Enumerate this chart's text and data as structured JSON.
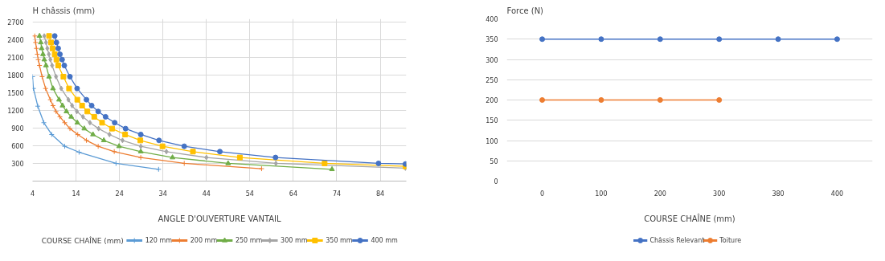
{
  "chart_data": [
    {
      "type": "line",
      "ylabel": "H châssis (mm)",
      "xlabel": "ANGLE D'OUVERTURE VANTAIL",
      "legend_title": "COURSE CHAÎNE (mm)",
      "legend": "bottom",
      "grid": true,
      "xlim": [
        4,
        90
      ],
      "xticks": [
        4,
        14,
        24,
        34,
        44,
        54,
        64,
        74,
        84
      ],
      "ylim": [
        0,
        2750
      ],
      "yticks": [
        300,
        600,
        900,
        1200,
        1500,
        1800,
        2100,
        2400,
        2700
      ],
      "series": [
        {
          "name": "120 mm",
          "color": "#5b9bd5",
          "marker": "cross",
          "x": [
            4,
            4.2,
            5.2,
            6.6,
            8.4,
            11.4,
            14.7,
            23.2,
            33
          ],
          "values": [
            1770,
            1570,
            1270,
            990,
            790,
            590,
            490,
            300,
            200
          ]
        },
        {
          "name": "200 mm",
          "color": "#ed7d31",
          "marker": "cross",
          "x": [
            4.5,
            4.7,
            4.9,
            5.1,
            5.3,
            5.6,
            6.2,
            7.0,
            8.1,
            8.7,
            9.4,
            10.3,
            11.4,
            12.6,
            14.4,
            16.4,
            19.1,
            22.8,
            28.9,
            38.9,
            56.7
          ],
          "values": [
            2460,
            2350,
            2250,
            2150,
            2060,
            1960,
            1770,
            1570,
            1380,
            1280,
            1180,
            1090,
            990,
            890,
            790,
            690,
            590,
            500,
            400,
            300,
            210
          ]
        },
        {
          "name": "250 mm",
          "color": "#70ad47",
          "marker": "triangle",
          "x": [
            5.6,
            5.9,
            6.1,
            6.4,
            6.7,
            7.1,
            7.8,
            8.7,
            10.1,
            10.9,
            11.8,
            12.9,
            14.3,
            15.9,
            17.9,
            20.4,
            23.9,
            28.9,
            36.2,
            49.0,
            72.9
          ],
          "values": [
            2460,
            2350,
            2250,
            2150,
            2060,
            1960,
            1770,
            1570,
            1380,
            1280,
            1180,
            1090,
            990,
            890,
            790,
            690,
            590,
            500,
            400,
            300,
            200
          ]
        },
        {
          "name": "300 mm",
          "color": "#a5a5a5",
          "marker": "diamond",
          "x": [
            6.7,
            7.1,
            7.4,
            7.75,
            8.1,
            8.5,
            9.4,
            10.6,
            12.25,
            13.1,
            14.2,
            15.6,
            17.2,
            19.2,
            21.7,
            24.7,
            28.9,
            34.8,
            44.0,
            60.0,
            89.8
          ],
          "values": [
            2460,
            2350,
            2250,
            2150,
            2060,
            1960,
            1770,
            1570,
            1380,
            1280,
            1180,
            1090,
            990,
            890,
            790,
            690,
            590,
            500,
            400,
            300,
            220
          ]
        },
        {
          "name": "350 mm",
          "color": "#ffc000",
          "marker": "square",
          "x": [
            7.8,
            8.25,
            8.6,
            9.1,
            9.5,
            9.9,
            11.1,
            12.4,
            14.3,
            15.4,
            16.6,
            18.2,
            20.0,
            22.3,
            25.3,
            28.8,
            33.9,
            40.9,
            51.7,
            71.2,
            89.8
          ],
          "values": [
            2460,
            2350,
            2250,
            2150,
            2060,
            1960,
            1770,
            1570,
            1380,
            1280,
            1180,
            1090,
            990,
            890,
            790,
            690,
            590,
            500,
            400,
            300,
            250
          ]
        },
        {
          "name": "400 mm",
          "color": "#4472c4",
          "marker": "circle",
          "x": [
            9.1,
            9.5,
            9.9,
            10.3,
            10.8,
            11.3,
            12.6,
            14.25,
            16.4,
            17.6,
            19.1,
            20.8,
            22.9,
            25.4,
            28.9,
            33.1,
            38.9,
            47.1,
            59.9,
            83.6,
            89.8
          ],
          "values": [
            2460,
            2350,
            2250,
            2150,
            2060,
            1960,
            1770,
            1570,
            1380,
            1280,
            1180,
            1090,
            990,
            890,
            790,
            690,
            590,
            500,
            400,
            300,
            290
          ]
        }
      ]
    },
    {
      "type": "line",
      "ylabel": "Force (N)",
      "xlabel": "COURSE CHAÎNE (mm)",
      "legend": "bottom",
      "grid": "y",
      "marker": "circle",
      "categories": [
        "0",
        "100",
        "200",
        "300",
        "380",
        "400"
      ],
      "ylim": [
        0,
        400
      ],
      "yticks": [
        0,
        50,
        100,
        150,
        200,
        250,
        300,
        350,
        400
      ],
      "series": [
        {
          "name": "Châssis Relevant",
          "color": "#4472c4",
          "values": [
            350,
            350,
            350,
            350,
            350,
            350
          ]
        },
        {
          "name": "Toiture",
          "color": "#ed7d31",
          "values": [
            200,
            200,
            200,
            200,
            null,
            null
          ]
        }
      ]
    }
  ]
}
